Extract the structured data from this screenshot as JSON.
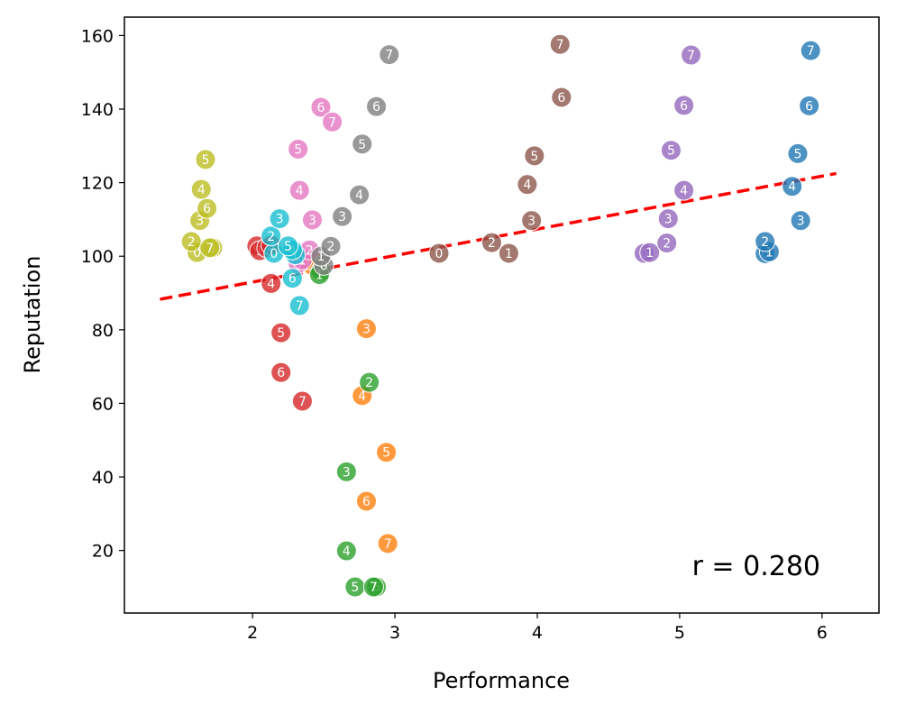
{
  "chart_data": {
    "type": "scatter",
    "title": "",
    "xlabel": "Performance",
    "ylabel": "Reputation",
    "xlim": [
      1.1,
      6.4
    ],
    "ylim": [
      3,
      165
    ],
    "xticks": [
      2,
      3,
      4,
      5,
      6
    ],
    "yticks": [
      20,
      40,
      60,
      80,
      100,
      120,
      140,
      160
    ],
    "grid": false,
    "annotation": "r = 0.280",
    "trendline": {
      "x": [
        1.35,
        6.1
      ],
      "y": [
        88.3,
        122.5
      ],
      "color": "#ff0000",
      "style": "dashed"
    },
    "series": [
      {
        "name": "blue",
        "color": "#1f77b4",
        "points": [
          {
            "x": 5.6,
            "y": 100.7,
            "label": "0"
          },
          {
            "x": 5.63,
            "y": 101.2,
            "label": "1"
          },
          {
            "x": 5.6,
            "y": 104.0,
            "label": "2"
          },
          {
            "x": 5.85,
            "y": 109.7,
            "label": "3"
          },
          {
            "x": 5.79,
            "y": 119.0,
            "label": "4"
          },
          {
            "x": 5.83,
            "y": 127.9,
            "label": "5"
          },
          {
            "x": 5.91,
            "y": 140.9,
            "label": "6"
          },
          {
            "x": 5.92,
            "y": 155.9,
            "label": "7"
          }
        ]
      },
      {
        "name": "orange",
        "color": "#ff7f0e",
        "points": [
          {
            "x": 2.42,
            "y": 97.5,
            "label": "0"
          },
          {
            "x": 2.45,
            "y": 98.2,
            "label": "1"
          },
          {
            "x": 2.38,
            "y": 99.0,
            "label": "2"
          },
          {
            "x": 2.8,
            "y": 80.3,
            "label": "3"
          },
          {
            "x": 2.77,
            "y": 62.1,
            "label": "4"
          },
          {
            "x": 2.94,
            "y": 46.7,
            "label": "5"
          },
          {
            "x": 2.8,
            "y": 33.4,
            "label": "6"
          },
          {
            "x": 2.95,
            "y": 21.9,
            "label": "7"
          }
        ]
      },
      {
        "name": "green",
        "color": "#2ca02c",
        "points": [
          {
            "x": 2.48,
            "y": 96.0,
            "label": "0"
          },
          {
            "x": 2.47,
            "y": 95.0,
            "label": "1"
          },
          {
            "x": 2.82,
            "y": 65.7,
            "label": "2"
          },
          {
            "x": 2.66,
            "y": 41.4,
            "label": "3"
          },
          {
            "x": 2.66,
            "y": 19.9,
            "label": "4"
          },
          {
            "x": 2.72,
            "y": 10.1,
            "label": "5"
          },
          {
            "x": 2.87,
            "y": 10.1,
            "label": "6"
          },
          {
            "x": 2.85,
            "y": 10.1,
            "label": "7"
          }
        ]
      },
      {
        "name": "red",
        "color": "#d62728",
        "points": [
          {
            "x": 2.03,
            "y": 102.8,
            "label": "0"
          },
          {
            "x": 2.05,
            "y": 101.5,
            "label": "1"
          },
          {
            "x": 2.1,
            "y": 102.3,
            "label": "2"
          },
          {
            "x": 2.13,
            "y": 103.0,
            "label": "3"
          },
          {
            "x": 2.13,
            "y": 92.6,
            "label": "4"
          },
          {
            "x": 2.2,
            "y": 79.2,
            "label": "5"
          },
          {
            "x": 2.2,
            "y": 68.4,
            "label": "6"
          },
          {
            "x": 2.35,
            "y": 60.6,
            "label": "7"
          }
        ]
      },
      {
        "name": "purple",
        "color": "#9467bd",
        "points": [
          {
            "x": 4.75,
            "y": 100.8,
            "label": "0"
          },
          {
            "x": 4.79,
            "y": 101.0,
            "label": "1"
          },
          {
            "x": 4.91,
            "y": 103.6,
            "label": "2"
          },
          {
            "x": 4.92,
            "y": 110.2,
            "label": "3"
          },
          {
            "x": 5.03,
            "y": 117.9,
            "label": "4"
          },
          {
            "x": 4.94,
            "y": 128.8,
            "label": "5"
          },
          {
            "x": 5.03,
            "y": 141.0,
            "label": "6"
          },
          {
            "x": 5.08,
            "y": 154.7,
            "label": "7"
          }
        ]
      },
      {
        "name": "brown",
        "color": "#8c564b",
        "points": [
          {
            "x": 3.31,
            "y": 100.8,
            "label": "0"
          },
          {
            "x": 3.8,
            "y": 100.8,
            "label": "1"
          },
          {
            "x": 3.68,
            "y": 103.7,
            "label": "2"
          },
          {
            "x": 3.96,
            "y": 109.7,
            "label": "3"
          },
          {
            "x": 3.93,
            "y": 119.5,
            "label": "4"
          },
          {
            "x": 3.98,
            "y": 127.3,
            "label": "5"
          },
          {
            "x": 4.17,
            "y": 143.2,
            "label": "6"
          },
          {
            "x": 4.16,
            "y": 157.6,
            "label": "7"
          }
        ]
      },
      {
        "name": "pink",
        "color": "#e377c2",
        "points": [
          {
            "x": 2.32,
            "y": 98.0,
            "label": "0"
          },
          {
            "x": 2.35,
            "y": 99.0,
            "label": "1"
          },
          {
            "x": 2.4,
            "y": 101.7,
            "label": "2"
          },
          {
            "x": 2.42,
            "y": 109.9,
            "label": "3"
          },
          {
            "x": 2.33,
            "y": 117.9,
            "label": "4"
          },
          {
            "x": 2.32,
            "y": 129.1,
            "label": "5"
          },
          {
            "x": 2.48,
            "y": 140.5,
            "label": "6"
          },
          {
            "x": 2.56,
            "y": 136.5,
            "label": "7"
          }
        ]
      },
      {
        "name": "gray",
        "color": "#7f7f7f",
        "points": [
          {
            "x": 2.5,
            "y": 97.5,
            "label": "0"
          },
          {
            "x": 2.48,
            "y": 100.0,
            "label": "1"
          },
          {
            "x": 2.55,
            "y": 102.7,
            "label": "2"
          },
          {
            "x": 2.63,
            "y": 110.8,
            "label": "3"
          },
          {
            "x": 2.75,
            "y": 116.7,
            "label": "4"
          },
          {
            "x": 2.77,
            "y": 130.5,
            "label": "5"
          },
          {
            "x": 2.87,
            "y": 140.7,
            "label": "6"
          },
          {
            "x": 2.96,
            "y": 154.8,
            "label": "7"
          }
        ]
      },
      {
        "name": "olive",
        "color": "#bcbd22",
        "points": [
          {
            "x": 1.61,
            "y": 101.0,
            "label": "0"
          },
          {
            "x": 1.72,
            "y": 102.3,
            "label": "1"
          },
          {
            "x": 1.57,
            "y": 104.0,
            "label": "2"
          },
          {
            "x": 1.63,
            "y": 109.7,
            "label": "3"
          },
          {
            "x": 1.64,
            "y": 118.2,
            "label": "4"
          },
          {
            "x": 1.67,
            "y": 126.3,
            "label": "5"
          },
          {
            "x": 1.68,
            "y": 113.0,
            "label": "6"
          },
          {
            "x": 1.7,
            "y": 102.3,
            "label": "7"
          }
        ]
      },
      {
        "name": "cyan",
        "color": "#17becf",
        "points": [
          {
            "x": 2.15,
            "y": 100.8,
            "label": "0"
          },
          {
            "x": 2.3,
            "y": 100.4,
            "label": "1"
          },
          {
            "x": 2.13,
            "y": 105.5,
            "label": "2"
          },
          {
            "x": 2.19,
            "y": 110.2,
            "label": "3"
          },
          {
            "x": 2.28,
            "y": 101.7,
            "label": "4"
          },
          {
            "x": 2.25,
            "y": 102.8,
            "label": "5"
          },
          {
            "x": 2.28,
            "y": 94.0,
            "label": "6"
          },
          {
            "x": 2.33,
            "y": 86.6,
            "label": "7"
          }
        ]
      }
    ]
  }
}
